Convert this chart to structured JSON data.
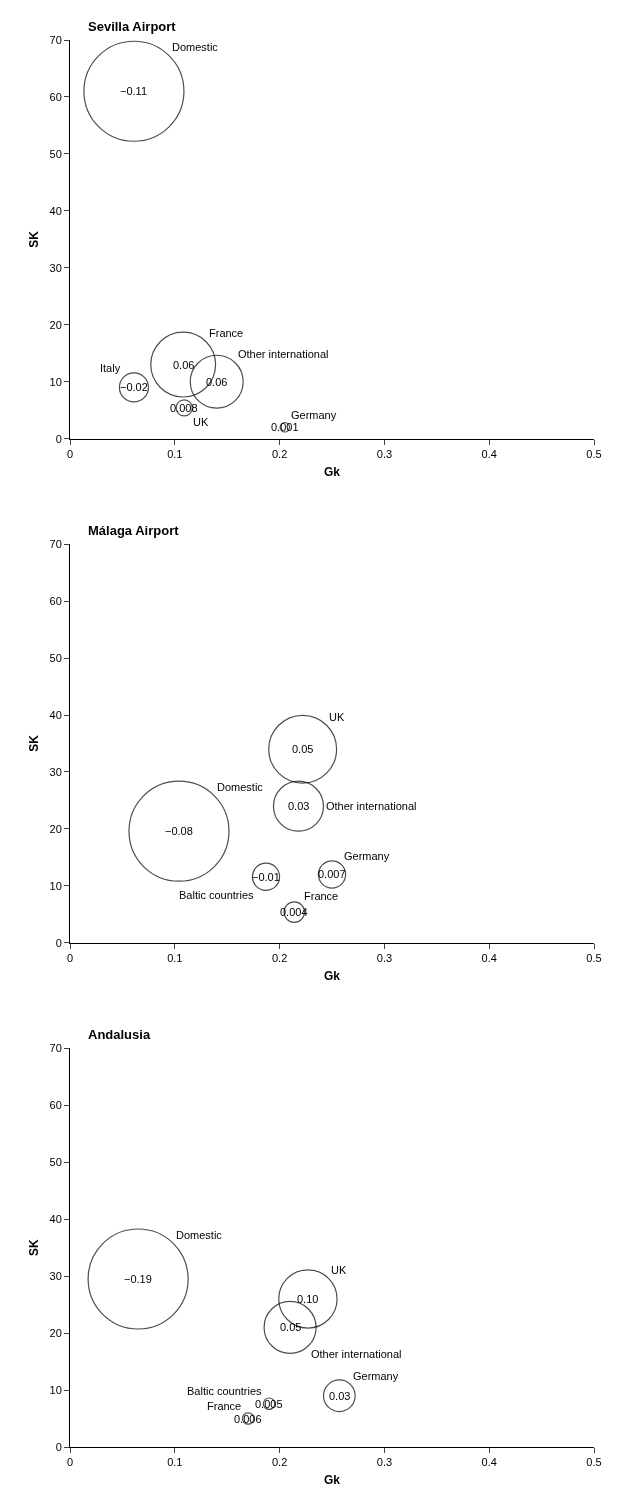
{
  "chart_data": [
    {
      "type": "bubble",
      "title": "Sevilla Airport",
      "xlabel": "Gk",
      "ylabel": "SK",
      "xlim": [
        0,
        0.5
      ],
      "xticks": [
        0,
        0.1,
        0.2,
        0.3,
        0.4,
        0.5
      ],
      "ylim": [
        0,
        70
      ],
      "yticks": [
        0,
        10,
        20,
        30,
        40,
        50,
        60,
        70
      ],
      "legend": false,
      "series": [
        {
          "name": "Domestic",
          "color": "#000000",
          "x": [
            0.061
          ],
          "values": [
            61
          ],
          "sizes": [
            1
          ]
        },
        {
          "name": "France",
          "color": "#000000",
          "x": [
            0.108
          ],
          "values": [
            13
          ],
          "sizes": [
            0.42
          ]
        },
        {
          "name": "Other international",
          "color": "#000000",
          "x": [
            0.14
          ],
          "values": [
            10
          ],
          "sizes": [
            0.28
          ]
        },
        {
          "name": "Italy",
          "color": "#000000",
          "x": [
            0.061
          ],
          "values": [
            9
          ],
          "sizes": [
            0.084
          ]
        },
        {
          "name": "UK",
          "color": "#000000",
          "x": [
            0.109
          ],
          "values": [
            5.4
          ],
          "sizes": [
            0.026
          ]
        },
        {
          "name": "Germany",
          "color": "#000000",
          "x": [
            0.205
          ],
          "values": [
            2
          ],
          "sizes": [
            0.009
          ]
        }
      ],
      "annotations": [
        {
          "text": "−0.11",
          "x": 0.061,
          "y": 61
        },
        {
          "text": "0.06",
          "x": 0.108,
          "y": 13
        },
        {
          "text": "0.06",
          "x": 0.14,
          "y": 10
        },
        {
          "text": "−0.02",
          "x": 0.061,
          "y": 9
        },
        {
          "text": "0.008",
          "x": 0.109,
          "y": 5.4
        },
        {
          "text": "0.001",
          "x": 0.205,
          "y": 2
        }
      ]
    },
    {
      "type": "bubble",
      "title": "Málaga Airport",
      "xlabel": "Gk",
      "ylabel": "SK",
      "xlim": [
        0,
        0.5
      ],
      "xticks": [
        0,
        0.1,
        0.2,
        0.3,
        0.4,
        0.5
      ],
      "ylim": [
        0,
        70
      ],
      "yticks": [
        0,
        10,
        20,
        30,
        40,
        50,
        60,
        70
      ],
      "legend": false,
      "series": [
        {
          "name": "Domestic",
          "color": "#000000",
          "x": [
            0.104
          ],
          "values": [
            19.6
          ],
          "sizes": [
            1
          ]
        },
        {
          "name": "UK",
          "color": "#000000",
          "x": [
            0.222
          ],
          "values": [
            34
          ],
          "sizes": [
            0.46
          ]
        },
        {
          "name": "Other international",
          "color": "#000000",
          "x": [
            0.218
          ],
          "values": [
            24
          ],
          "sizes": [
            0.25
          ]
        },
        {
          "name": "Germany",
          "color": "#000000",
          "x": [
            0.25
          ],
          "values": [
            12
          ],
          "sizes": [
            0.074
          ]
        },
        {
          "name": "Baltic countries",
          "color": "#000000",
          "x": [
            0.187
          ],
          "values": [
            11.6
          ],
          "sizes": [
            0.074
          ]
        },
        {
          "name": "France",
          "color": "#000000",
          "x": [
            0.214
          ],
          "values": [
            5.4
          ],
          "sizes": [
            0.042
          ]
        }
      ],
      "annotations": [
        {
          "text": "−0.08",
          "x": 0.104,
          "y": 19.6
        },
        {
          "text": "0.05",
          "x": 0.222,
          "y": 34
        },
        {
          "text": "0.03",
          "x": 0.218,
          "y": 24
        },
        {
          "text": "0.007",
          "x": 0.25,
          "y": 12
        },
        {
          "text": "−0.01",
          "x": 0.187,
          "y": 11.6
        },
        {
          "text": "0.004",
          "x": 0.214,
          "y": 5.4
        }
      ]
    },
    {
      "type": "bubble",
      "title": "Andalusia",
      "xlabel": "Gk",
      "ylabel": "SK",
      "xlim": [
        0,
        0.5
      ],
      "xticks": [
        0,
        0.1,
        0.2,
        0.3,
        0.4,
        0.5
      ],
      "ylim": [
        0,
        70
      ],
      "yticks": [
        0,
        10,
        20,
        30,
        40,
        50,
        60,
        70
      ],
      "legend": false,
      "series": [
        {
          "name": "Domestic",
          "color": "#000000",
          "x": [
            0.065
          ],
          "values": [
            29.5
          ],
          "sizes": [
            1
          ]
        },
        {
          "name": "UK",
          "color": "#000000",
          "x": [
            0.227
          ],
          "values": [
            26
          ],
          "sizes": [
            0.34
          ]
        },
        {
          "name": "Other international",
          "color": "#000000",
          "x": [
            0.21
          ],
          "values": [
            21
          ],
          "sizes": [
            0.27
          ]
        },
        {
          "name": "Germany",
          "color": "#000000",
          "x": [
            0.257
          ],
          "values": [
            9
          ],
          "sizes": [
            0.1
          ]
        },
        {
          "name": "Baltic countries",
          "color": "#000000",
          "x": [
            0.19
          ],
          "values": [
            7.6
          ],
          "sizes": [
            0.013
          ]
        },
        {
          "name": "France",
          "color": "#000000",
          "x": [
            0.17
          ],
          "values": [
            5
          ],
          "sizes": [
            0.013
          ]
        }
      ],
      "annotations": [
        {
          "text": "−0.19",
          "x": 0.065,
          "y": 29.5
        },
        {
          "text": "0.10",
          "x": 0.227,
          "y": 26
        },
        {
          "text": "0.05",
          "x": 0.21,
          "y": 21
        },
        {
          "text": "0.03",
          "x": 0.257,
          "y": 9
        },
        {
          "text": "0.005",
          "x": 0.19,
          "y": 7.6
        },
        {
          "text": "0.006",
          "x": 0.17,
          "y": 5
        }
      ]
    }
  ]
}
